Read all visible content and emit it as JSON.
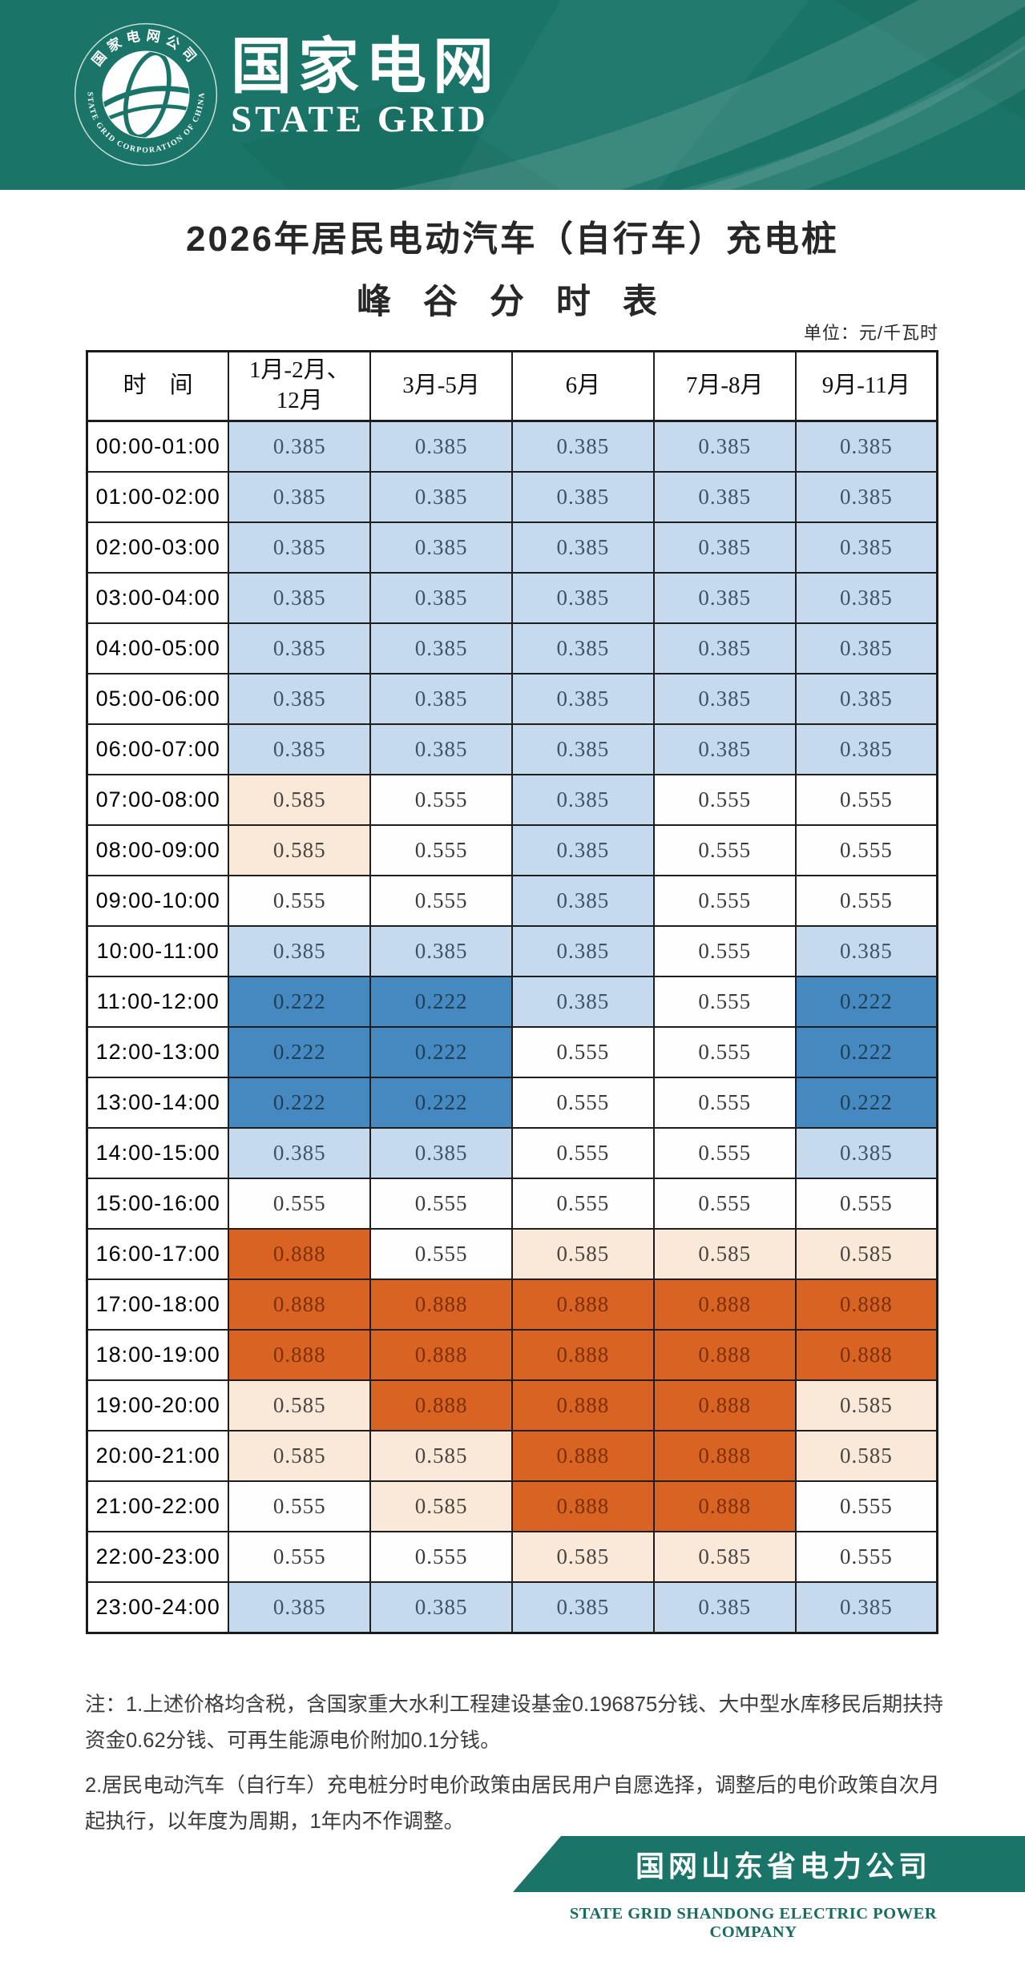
{
  "header": {
    "brand_cn": "国家电网",
    "brand_en": "STATE GRID",
    "logo": {
      "ring_text_top": "国家电网公司",
      "ring_text_bottom": "STATE GRID CORPORATION OF CHINA"
    }
  },
  "title": {
    "line1": "2026年居民电动汽车（自行车）充电桩",
    "line2": "峰 谷 分 时 表"
  },
  "unit_label": "单位：元/千瓦时",
  "table": {
    "headers": [
      "时　间",
      "1月-2月、\n12月",
      "3月-5月",
      "6月",
      "7月-8月",
      "9月-11月"
    ],
    "rows": [
      {
        "time": "00:00-01:00",
        "values": [
          "0.385",
          "0.385",
          "0.385",
          "0.385",
          "0.385"
        ]
      },
      {
        "time": "01:00-02:00",
        "values": [
          "0.385",
          "0.385",
          "0.385",
          "0.385",
          "0.385"
        ]
      },
      {
        "time": "02:00-03:00",
        "values": [
          "0.385",
          "0.385",
          "0.385",
          "0.385",
          "0.385"
        ]
      },
      {
        "time": "03:00-04:00",
        "values": [
          "0.385",
          "0.385",
          "0.385",
          "0.385",
          "0.385"
        ]
      },
      {
        "time": "04:00-05:00",
        "values": [
          "0.385",
          "0.385",
          "0.385",
          "0.385",
          "0.385"
        ]
      },
      {
        "time": "05:00-06:00",
        "values": [
          "0.385",
          "0.385",
          "0.385",
          "0.385",
          "0.385"
        ]
      },
      {
        "time": "06:00-07:00",
        "values": [
          "0.385",
          "0.385",
          "0.385",
          "0.385",
          "0.385"
        ]
      },
      {
        "time": "07:00-08:00",
        "values": [
          "0.585",
          "0.555",
          "0.385",
          "0.555",
          "0.555"
        ]
      },
      {
        "time": "08:00-09:00",
        "values": [
          "0.585",
          "0.555",
          "0.385",
          "0.555",
          "0.555"
        ]
      },
      {
        "time": "09:00-10:00",
        "values": [
          "0.555",
          "0.555",
          "0.385",
          "0.555",
          "0.555"
        ]
      },
      {
        "time": "10:00-11:00",
        "values": [
          "0.385",
          "0.385",
          "0.385",
          "0.555",
          "0.385"
        ]
      },
      {
        "time": "11:00-12:00",
        "values": [
          "0.222",
          "0.222",
          "0.385",
          "0.555",
          "0.222"
        ]
      },
      {
        "time": "12:00-13:00",
        "values": [
          "0.222",
          "0.222",
          "0.555",
          "0.555",
          "0.222"
        ]
      },
      {
        "time": "13:00-14:00",
        "values": [
          "0.222",
          "0.222",
          "0.555",
          "0.555",
          "0.222"
        ]
      },
      {
        "time": "14:00-15:00",
        "values": [
          "0.385",
          "0.385",
          "0.555",
          "0.555",
          "0.385"
        ]
      },
      {
        "time": "15:00-16:00",
        "values": [
          "0.555",
          "0.555",
          "0.555",
          "0.555",
          "0.555"
        ]
      },
      {
        "time": "16:00-17:00",
        "values": [
          "0.888",
          "0.555",
          "0.585",
          "0.585",
          "0.585"
        ]
      },
      {
        "time": "17:00-18:00",
        "values": [
          "0.888",
          "0.888",
          "0.888",
          "0.888",
          "0.888"
        ]
      },
      {
        "time": "18:00-19:00",
        "values": [
          "0.888",
          "0.888",
          "0.888",
          "0.888",
          "0.888"
        ]
      },
      {
        "time": "19:00-20:00",
        "values": [
          "0.585",
          "0.888",
          "0.888",
          "0.888",
          "0.585"
        ]
      },
      {
        "time": "20:00-21:00",
        "values": [
          "0.585",
          "0.585",
          "0.888",
          "0.888",
          "0.585"
        ]
      },
      {
        "time": "21:00-22:00",
        "values": [
          "0.555",
          "0.585",
          "0.888",
          "0.888",
          "0.555"
        ]
      },
      {
        "time": "22:00-23:00",
        "values": [
          "0.555",
          "0.555",
          "0.585",
          "0.585",
          "0.555"
        ]
      },
      {
        "time": "23:00-24:00",
        "values": [
          "0.385",
          "0.385",
          "0.385",
          "0.385",
          "0.385"
        ]
      }
    ]
  },
  "levels": {
    "0.222": "deep",
    "0.385": "valley",
    "0.555": "flat",
    "0.585": "peak",
    "0.888": "sharp"
  },
  "colors": {
    "banner": "#1a7568",
    "accent_teal": "#176b60",
    "deep_bg": "#4689C1",
    "deep_text": "#1d4057",
    "valley_bg": "#C5DAEC",
    "valley_text": "#3a5468",
    "flat_bg": "#fefefe",
    "flat_text": "#3b3b3b",
    "peak_bg": "#FAE9D9",
    "peak_text": "#4a453e",
    "sharp_bg": "#D96322",
    "sharp_text": "#7a3008"
  },
  "notes": [
    "注：1.上述价格均含税，含国家重大水利工程建设基金0.196875分钱、大中型水库移民后期扶持资金0.62分钱、可再生能源电价附加0.1分钱。",
    "2.居民电动汽车（自行车）充电桩分时电价政策由居民用户自愿选择，调整后的电价政策自次月起执行，以年度为周期，1年内不作调整。"
  ],
  "footer": {
    "company_cn": "国网山东省电力公司",
    "company_en": "STATE GRID SHANDONG ELECTRIC POWER COMPANY"
  }
}
